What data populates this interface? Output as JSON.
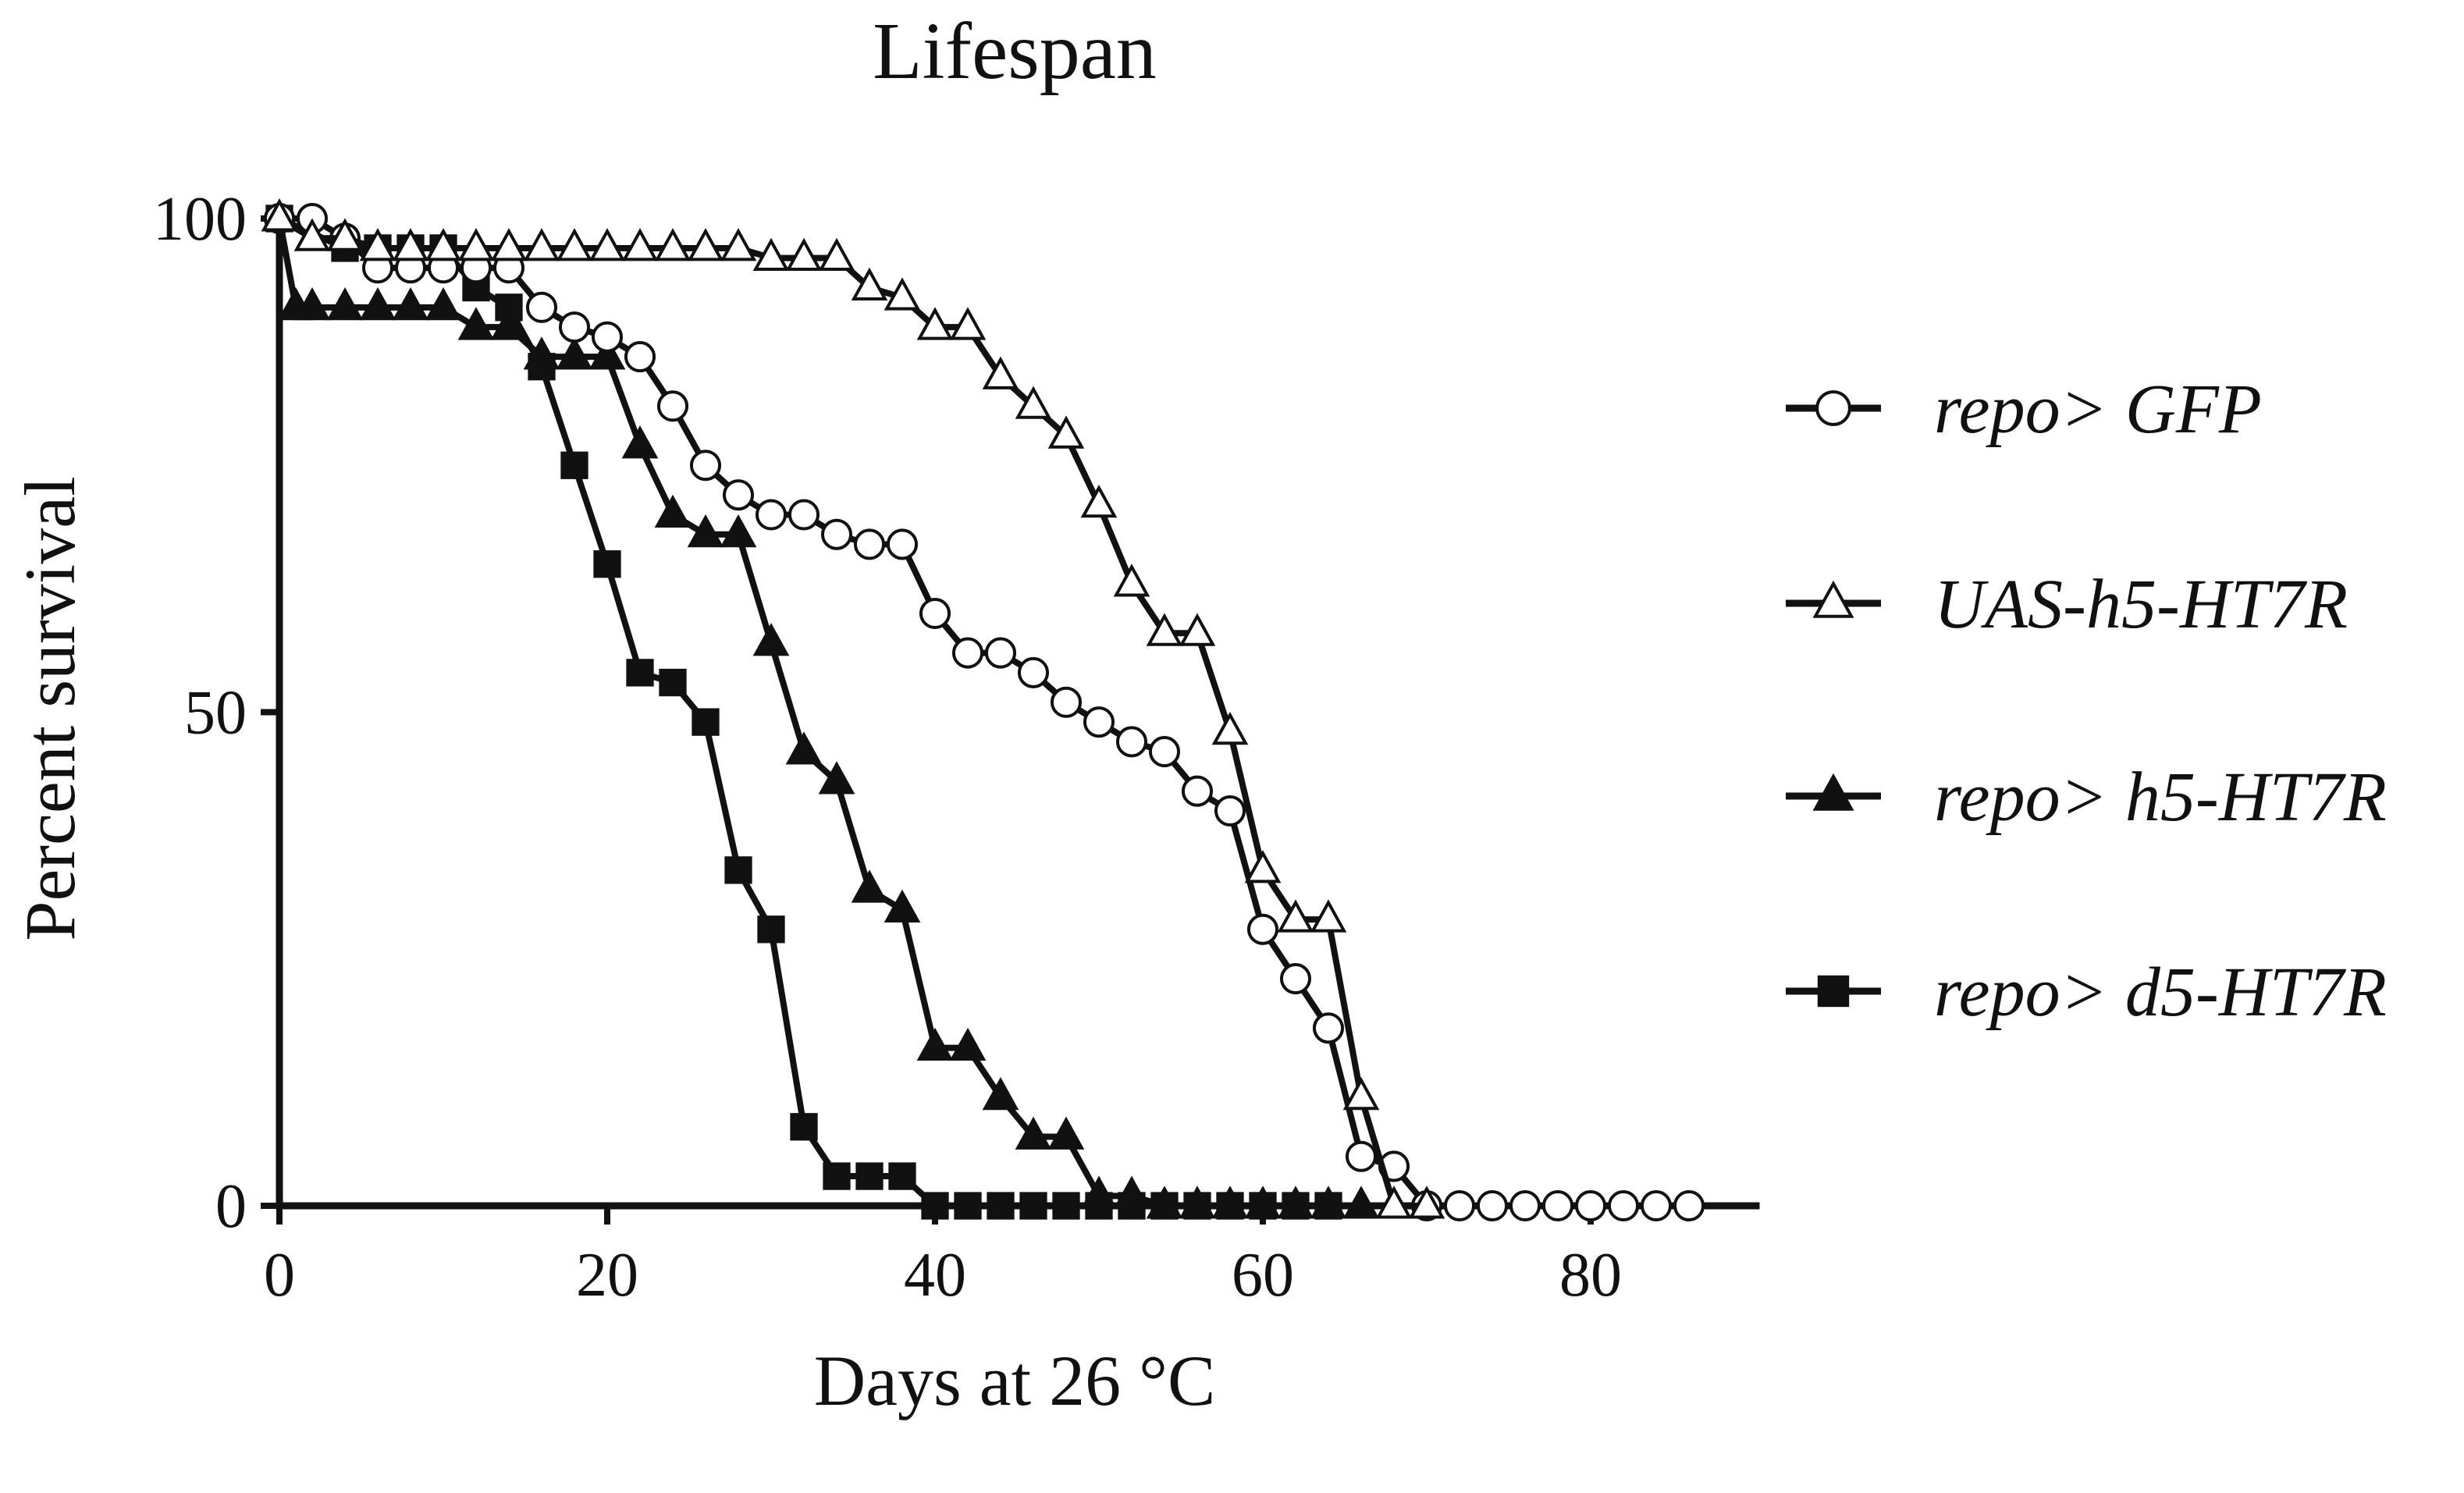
{
  "chart_data": {
    "type": "line",
    "title": "Lifespan",
    "xlabel": "Days at 26 °C",
    "ylabel": "Percent survival",
    "xlim": [
      0,
      90
    ],
    "ylim": [
      0,
      100
    ],
    "xticks": [
      "0",
      "20",
      "40",
      "60",
      "80"
    ],
    "yticks": [
      "0",
      "50",
      "100"
    ],
    "legend_position": "right",
    "series": [
      {
        "name": "repo> GFP",
        "marker": "circle-open",
        "x": [
          0,
          2,
          4,
          6,
          8,
          10,
          12,
          14,
          16,
          18,
          20,
          22,
          24,
          26,
          28,
          30,
          32,
          34,
          36,
          38,
          40,
          42,
          44,
          46,
          48,
          50,
          52,
          54,
          56,
          58,
          60,
          62,
          64,
          66,
          68,
          70,
          72,
          74,
          76,
          78,
          80,
          82,
          84,
          86
        ],
        "y": [
          100,
          100,
          98,
          95,
          95,
          95,
          95,
          95,
          91,
          89,
          88,
          86,
          81,
          75,
          72,
          70,
          70,
          68,
          67,
          67,
          60,
          56,
          56,
          54,
          51,
          49,
          47,
          46,
          42,
          40,
          28,
          23,
          18,
          5,
          4,
          0,
          0,
          0,
          0,
          0,
          0,
          0,
          0,
          0
        ]
      },
      {
        "name": "UAS-h5-HT7R",
        "marker": "triangle-open",
        "x": [
          0,
          2,
          4,
          6,
          8,
          10,
          12,
          14,
          16,
          18,
          20,
          22,
          24,
          26,
          28,
          30,
          32,
          34,
          36,
          38,
          40,
          42,
          44,
          46,
          48,
          50,
          52,
          54,
          56,
          58,
          60,
          62,
          64,
          66,
          68,
          70
        ],
        "y": [
          100,
          98,
          98,
          97,
          97,
          97,
          97,
          97,
          97,
          97,
          97,
          97,
          97,
          97,
          97,
          96,
          96,
          96,
          93,
          92,
          89,
          89,
          84,
          81,
          78,
          71,
          63,
          58,
          58,
          48,
          34,
          29,
          29,
          11,
          0,
          0
        ]
      },
      {
        "name": "repo> h5-HT7R",
        "marker": "triangle-filled",
        "x": [
          0,
          1,
          2,
          4,
          6,
          8,
          10,
          12,
          14,
          16,
          18,
          20,
          22,
          24,
          26,
          28,
          30,
          32,
          34,
          36,
          38,
          40,
          42,
          44,
          46,
          48,
          50,
          52,
          54,
          56,
          58,
          60,
          62,
          64,
          66
        ],
        "y": [
          100,
          91,
          91,
          91,
          91,
          91,
          91,
          89,
          89,
          86,
          86,
          86,
          77,
          70,
          68,
          68,
          57,
          46,
          43,
          32,
          30,
          16,
          16,
          11,
          7,
          7,
          1,
          1,
          0,
          0,
          0,
          0,
          0,
          0,
          0
        ]
      },
      {
        "name": "repo> d5-HT7R",
        "marker": "square-filled",
        "x": [
          0,
          4,
          6,
          8,
          10,
          12,
          14,
          16,
          18,
          20,
          22,
          24,
          26,
          28,
          30,
          32,
          34,
          36,
          38,
          40,
          42,
          44,
          46,
          48,
          50,
          52,
          54,
          56,
          58,
          60,
          62,
          64
        ],
        "y": [
          100,
          97,
          97,
          97,
          97,
          93,
          91,
          85,
          75,
          65,
          54,
          53,
          49,
          34,
          28,
          8,
          3,
          3,
          3,
          0,
          0,
          0,
          0,
          0,
          0,
          0,
          0,
          0,
          0,
          0,
          0,
          0
        ]
      }
    ]
  }
}
